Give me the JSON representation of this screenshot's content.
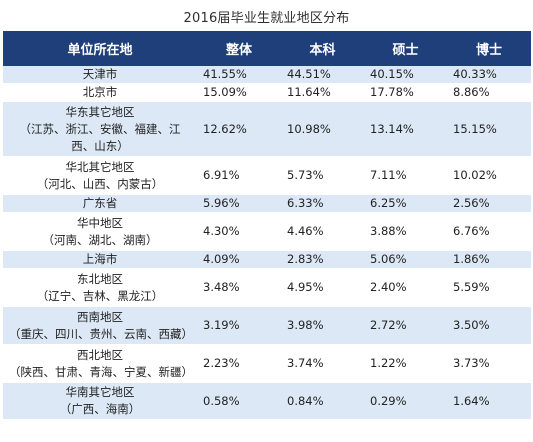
{
  "title": "2016届毕业生就业地区分布",
  "header": {
    "region": "单位所在地",
    "overall": "整体",
    "bachelor": "本科",
    "master": "硕士",
    "doctor": "博士"
  },
  "rows": [
    {
      "region": "天津市",
      "region_sub": "",
      "overall": "41.55%",
      "bachelor": "44.51%",
      "master": "40.15%",
      "doctor": "40.33%"
    },
    {
      "region": "北京市",
      "region_sub": "",
      "overall": "15.09%",
      "bachelor": "11.64%",
      "master": "17.78%",
      "doctor": "8.86%"
    },
    {
      "region": "华东其它地区",
      "region_sub": "（江苏、浙江、安徽、福建、江西、山东）",
      "overall": "12.62%",
      "bachelor": "10.98%",
      "master": "13.14%",
      "doctor": "15.15%"
    },
    {
      "region": "华北其它地区",
      "region_sub": "（河北、山西、内蒙古）",
      "overall": "6.91%",
      "bachelor": "5.73%",
      "master": "7.11%",
      "doctor": "10.02%"
    },
    {
      "region": "广东省",
      "region_sub": "",
      "overall": "5.96%",
      "bachelor": "6.33%",
      "master": "6.25%",
      "doctor": "2.56%"
    },
    {
      "region": "华中地区",
      "region_sub": "（河南、湖北、湖南）",
      "overall": "4.30%",
      "bachelor": "4.46%",
      "master": "3.88%",
      "doctor": "6.76%"
    },
    {
      "region": "上海市",
      "region_sub": "",
      "overall": "4.09%",
      "bachelor": "2.83%",
      "master": "5.06%",
      "doctor": "1.86%"
    },
    {
      "region": "东北地区",
      "region_sub": "（辽宁、吉林、黑龙江）",
      "overall": "3.48%",
      "bachelor": "4.95%",
      "master": "2.40%",
      "doctor": "5.59%"
    },
    {
      "region": "西南地区",
      "region_sub": "（重庆、四川、贵州、云南、西藏）",
      "overall": "3.19%",
      "bachelor": "3.98%",
      "master": "2.72%",
      "doctor": "3.50%"
    },
    {
      "region": "西北地区",
      "region_sub": "（陕西、甘肃、青海、宁夏、新疆）",
      "overall": "2.23%",
      "bachelor": "3.74%",
      "master": "1.22%",
      "doctor": "3.73%"
    },
    {
      "region": "华南其它地区",
      "region_sub": "（广西、海南）",
      "overall": "0.58%",
      "bachelor": "0.84%",
      "master": "0.29%",
      "doctor": "1.64%"
    }
  ],
  "colors": {
    "header_bg": "#1f3f7a",
    "header_text": "#ffffff",
    "row_shade": "#dce8f5",
    "row_plain": "#ffffff"
  }
}
